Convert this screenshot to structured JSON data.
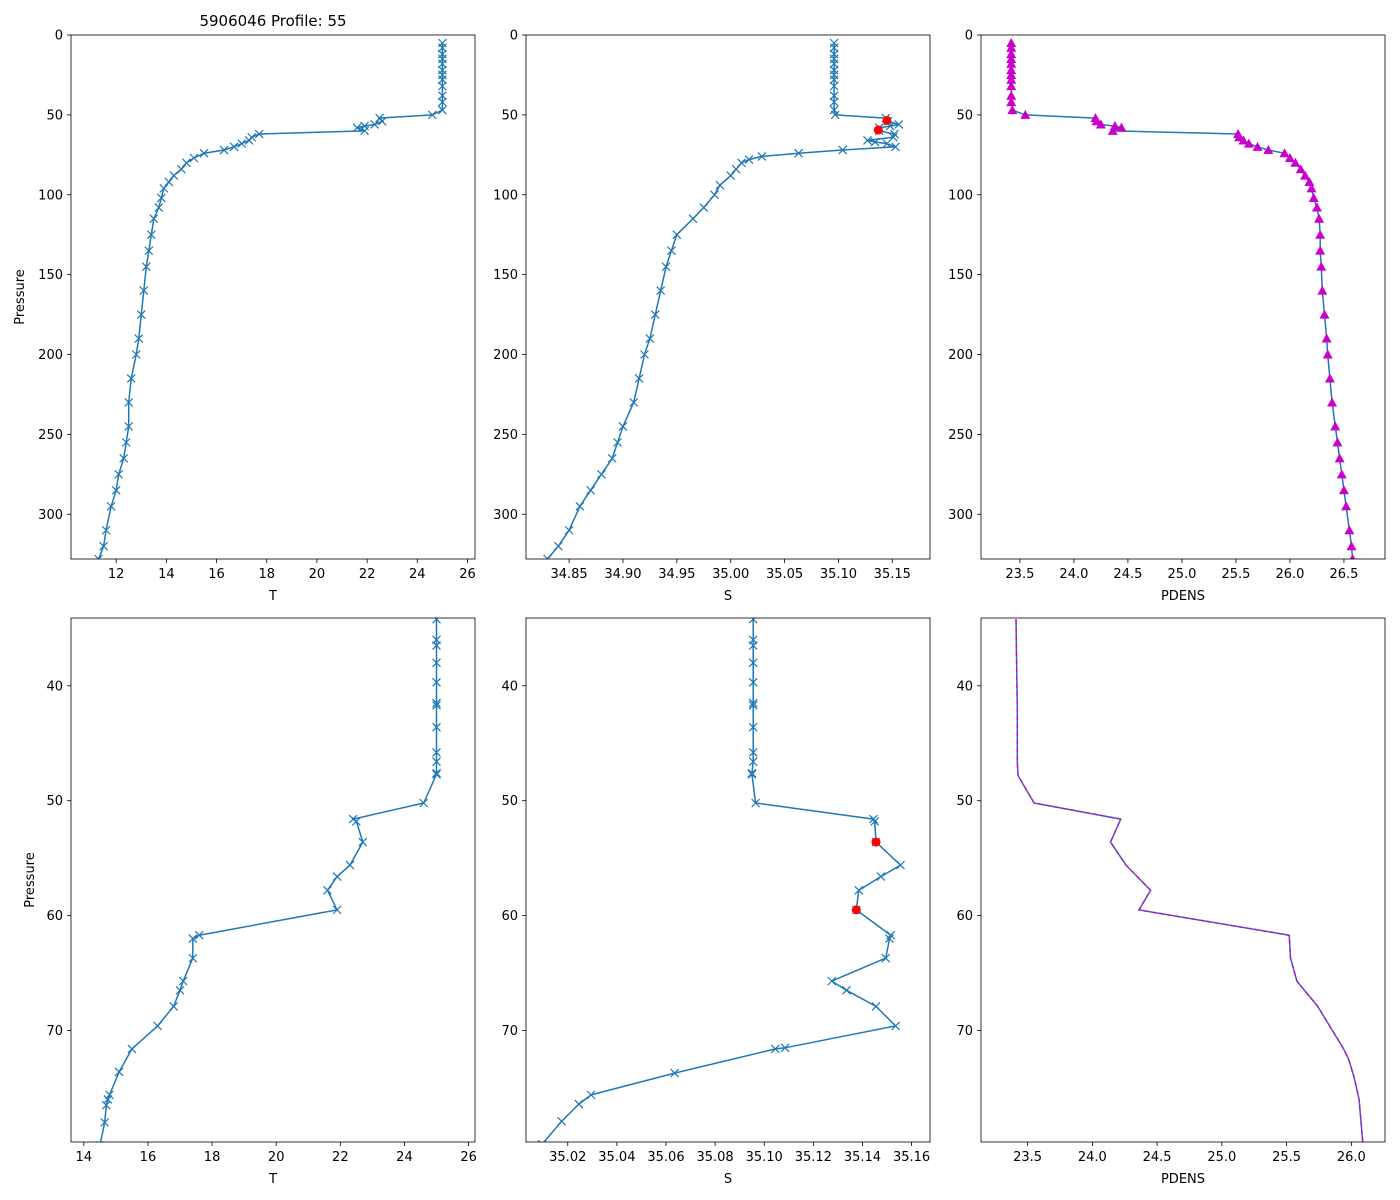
{
  "figure_title": "5906046 Profile: 55",
  "chart_data": [
    {
      "id": "top-t",
      "type": "line",
      "title": "5906046 Profile: 55",
      "xlabel": "T",
      "ylabel": "Pressure",
      "xlim": [
        10.2,
        26.3
      ],
      "ylim": [
        328,
        0
      ],
      "xticks": [
        12,
        14,
        16,
        18,
        20,
        22,
        24,
        26
      ],
      "yticks": [
        0,
        50,
        100,
        150,
        200,
        250,
        300
      ],
      "xtick_labels": [
        "12",
        "14",
        "16",
        "18",
        "20",
        "22",
        "24",
        "26"
      ],
      "ytick_labels": [
        "0",
        "50",
        "100",
        "150",
        "200",
        "250",
        "300"
      ],
      "series": [
        {
          "name": "T",
          "color": "#1f77b4",
          "marker": "x",
          "x": [
            25.0,
            25.0,
            25.0,
            25.0,
            25.0,
            25.0,
            25.0,
            25.0,
            25.0,
            25.0,
            25.0,
            25.0,
            24.6,
            22.5,
            22.6,
            22.3,
            21.9,
            21.6,
            21.9,
            17.7,
            17.4,
            17.3,
            17.0,
            16.7,
            16.3,
            15.5,
            15.1,
            14.8,
            14.6,
            14.3,
            14.1,
            13.9,
            13.8,
            13.7,
            13.5,
            13.4,
            13.3,
            13.2,
            13.1,
            13.0,
            12.9,
            12.8,
            12.6,
            12.5,
            12.5,
            12.4,
            12.3,
            12.1,
            12.0,
            11.8,
            11.6,
            11.5,
            11.3
          ],
          "y": [
            5,
            8,
            12,
            15,
            18,
            22,
            25,
            28,
            32,
            38,
            42,
            47,
            50,
            52,
            54,
            56,
            57,
            58,
            60,
            62,
            64,
            66,
            68,
            70,
            72,
            74,
            77,
            80,
            84,
            88,
            92,
            96,
            102,
            108,
            115,
            125,
            135,
            145,
            160,
            175,
            190,
            200,
            215,
            230,
            245,
            255,
            265,
            275,
            285,
            295,
            310,
            320,
            328
          ]
        }
      ]
    },
    {
      "id": "top-s",
      "type": "line",
      "title": "",
      "xlabel": "S",
      "ylabel": "",
      "xlim": [
        34.81,
        35.185
      ],
      "ylim": [
        328,
        0
      ],
      "xticks": [
        34.85,
        34.9,
        34.95,
        35.0,
        35.05,
        35.1,
        35.15
      ],
      "yticks": [
        0,
        50,
        100,
        150,
        200,
        250,
        300
      ],
      "xtick_labels": [
        "34.85",
        "34.90",
        "34.95",
        "35.00",
        "35.05",
        "35.10",
        "35.15"
      ],
      "ytick_labels": [
        "0",
        "50",
        "100",
        "150",
        "200",
        "250",
        "300"
      ],
      "series": [
        {
          "name": "S",
          "color": "#1f77b4",
          "marker": "x",
          "x": [
            35.096,
            35.096,
            35.096,
            35.096,
            35.096,
            35.096,
            35.096,
            35.096,
            35.096,
            35.096,
            35.096,
            35.096,
            35.097,
            35.144,
            35.146,
            35.156,
            35.148,
            35.138,
            35.138,
            35.152,
            35.151,
            35.127,
            35.134,
            35.145,
            35.153,
            35.104,
            35.063,
            35.029,
            35.017,
            35.01,
            35.005,
            35.0,
            34.99,
            34.985,
            34.975,
            34.965,
            34.95,
            34.945,
            34.94,
            34.935,
            34.93,
            34.925,
            34.92,
            34.915,
            34.91,
            34.9,
            34.895,
            34.89,
            34.88,
            34.87,
            34.86,
            34.85,
            34.84,
            34.83
          ],
          "y": [
            5,
            8,
            12,
            15,
            18,
            22,
            25,
            28,
            32,
            38,
            42,
            47,
            50,
            52,
            54,
            56,
            57,
            58,
            60,
            62,
            64,
            66,
            67,
            68,
            70,
            72,
            74,
            76,
            78,
            80,
            84,
            88,
            94,
            100,
            108,
            115,
            125,
            135,
            145,
            160,
            175,
            190,
            200,
            215,
            230,
            245,
            255,
            265,
            275,
            285,
            295,
            310,
            320,
            328
          ]
        },
        {
          "name": "flagged",
          "color": "#ff0000",
          "marker": "circle",
          "x": [
            35.145,
            35.137
          ],
          "y": [
            53.5,
            59.5
          ]
        }
      ]
    },
    {
      "id": "top-pdens",
      "type": "line",
      "title": "",
      "xlabel": "PDENS",
      "ylabel": "",
      "xlim": [
        23.14,
        26.88
      ],
      "ylim": [
        328,
        0
      ],
      "xticks": [
        23.5,
        24.0,
        24.5,
        25.0,
        25.5,
        26.0,
        26.5
      ],
      "yticks": [
        0,
        50,
        100,
        150,
        200,
        250,
        300
      ],
      "xtick_labels": [
        "23.5",
        "24.0",
        "24.5",
        "25.0",
        "25.5",
        "26.0",
        "26.5"
      ],
      "ytick_labels": [
        "0",
        "50",
        "100",
        "150",
        "200",
        "250",
        "300"
      ],
      "series": [
        {
          "name": "PDENS",
          "color": "#cc00cc",
          "line_color": "#1f77b4",
          "marker": "triangle",
          "x": [
            23.42,
            23.42,
            23.42,
            23.42,
            23.42,
            23.42,
            23.42,
            23.42,
            23.42,
            23.42,
            23.42,
            23.43,
            23.55,
            24.2,
            24.21,
            24.25,
            24.38,
            24.44,
            24.36,
            25.52,
            25.53,
            25.57,
            25.62,
            25.7,
            25.8,
            25.95,
            26.0,
            26.05,
            26.1,
            26.14,
            26.18,
            26.2,
            26.22,
            26.25,
            26.27,
            26.28,
            26.28,
            26.29,
            26.3,
            26.32,
            26.34,
            26.35,
            26.37,
            26.39,
            26.42,
            26.44,
            26.46,
            26.48,
            26.5,
            26.52,
            26.55,
            26.57,
            26.58
          ],
          "y": [
            5,
            8,
            12,
            15,
            18,
            22,
            25,
            28,
            32,
            38,
            42,
            47,
            50,
            52,
            54,
            56,
            57,
            58,
            60,
            62,
            64,
            66,
            68,
            70,
            72,
            74,
            77,
            80,
            84,
            88,
            92,
            96,
            102,
            108,
            115,
            125,
            135,
            145,
            160,
            175,
            190,
            200,
            215,
            230,
            245,
            255,
            265,
            275,
            285,
            295,
            310,
            320,
            328
          ]
        }
      ]
    },
    {
      "id": "bottom-t",
      "type": "line",
      "title": "",
      "xlabel": "T",
      "ylabel": "Pressure",
      "xlim": [
        13.6,
        26.2
      ],
      "ylim": [
        79.7,
        34.1
      ],
      "xticks": [
        14,
        16,
        18,
        20,
        22,
        24,
        26
      ],
      "yticks": [
        40,
        50,
        60,
        70
      ],
      "xtick_labels": [
        "14",
        "16",
        "18",
        "20",
        "22",
        "24",
        "26"
      ],
      "ytick_labels": [
        "40",
        "50",
        "60",
        "70"
      ],
      "series": [
        {
          "name": "T",
          "color": "#1f77b4",
          "marker": "x",
          "x": [
            25.0,
            25.0,
            25.0,
            25.0,
            25.0,
            25.0,
            25.0,
            25.0,
            25.0,
            25.0,
            25.0,
            25.0,
            24.6,
            22.4,
            22.5,
            22.7,
            22.3,
            21.9,
            21.6,
            21.9,
            17.6,
            17.4,
            17.4,
            17.1,
            17.0,
            16.8,
            16.3,
            15.5,
            15.1,
            14.8,
            14.75,
            14.7,
            14.65,
            14.5
          ],
          "y": [
            34.2,
            36.0,
            36.5,
            38.0,
            39.7,
            41.5,
            41.7,
            43.6,
            45.8,
            46.6,
            47.6,
            47.7,
            50.2,
            51.6,
            51.8,
            53.6,
            55.6,
            56.6,
            57.8,
            59.5,
            61.7,
            62.0,
            63.7,
            65.7,
            66.5,
            67.9,
            69.6,
            71.6,
            73.6,
            75.6,
            76.0,
            76.5,
            78.0,
            80.0
          ]
        }
      ]
    },
    {
      "id": "bottom-s",
      "type": "line",
      "title": "",
      "xlabel": "S",
      "ylabel": "",
      "xlim": [
        35.003,
        35.1675
      ],
      "ylim": [
        79.7,
        34.1
      ],
      "xticks": [
        35.02,
        35.04,
        35.06,
        35.08,
        35.1,
        35.12,
        35.14,
        35.16
      ],
      "yticks": [
        40,
        50,
        60,
        70
      ],
      "xtick_labels": [
        "35.02",
        "35.04",
        "35.06",
        "35.08",
        "35.10",
        "35.12",
        "35.14",
        "35.16"
      ],
      "ytick_labels": [
        "40",
        "50",
        "60",
        "70"
      ],
      "series": [
        {
          "name": "S",
          "color": "#1f77b4",
          "marker": "x",
          "x": [
            35.0955,
            35.0955,
            35.0955,
            35.0955,
            35.0955,
            35.0955,
            35.0955,
            35.0955,
            35.0955,
            35.0955,
            35.095,
            35.095,
            35.0965,
            35.1445,
            35.145,
            35.1455,
            35.1555,
            35.1475,
            35.1385,
            35.1375,
            35.1515,
            35.151,
            35.1495,
            35.1275,
            35.1335,
            35.1455,
            35.1535,
            35.1085,
            35.1045,
            35.0635,
            35.0295,
            35.0245,
            35.0175,
            35.0095
          ],
          "y": [
            34.2,
            36.0,
            36.5,
            38.0,
            39.7,
            41.5,
            41.7,
            43.6,
            45.8,
            46.6,
            47.6,
            47.7,
            50.2,
            51.6,
            51.8,
            53.6,
            55.6,
            56.6,
            57.8,
            59.5,
            61.7,
            62.0,
            63.7,
            65.7,
            66.5,
            67.9,
            69.6,
            71.5,
            71.6,
            73.7,
            75.6,
            76.4,
            77.9,
            79.9
          ]
        },
        {
          "name": "flagged",
          "color": "#ff0000",
          "marker": "circle",
          "x": [
            35.1455,
            35.1375
          ],
          "y": [
            53.6,
            59.5
          ]
        }
      ]
    },
    {
      "id": "bottom-pdens",
      "type": "line",
      "title": "",
      "xlabel": "PDENS",
      "ylabel": "",
      "xlim": [
        23.14,
        26.26
      ],
      "ylim": [
        79.7,
        34.1
      ],
      "xticks": [
        23.5,
        24.0,
        24.5,
        25.0,
        25.5,
        26.0
      ],
      "yticks": [
        40,
        50,
        60,
        70
      ],
      "xtick_labels": [
        "23.5",
        "24.0",
        "24.5",
        "25.0",
        "25.5",
        "26.0"
      ],
      "ytick_labels": [
        "40",
        "50",
        "60",
        "70"
      ],
      "series": [
        {
          "name": "PDENS",
          "color": "#cc00cc",
          "line_color": "#1f77b4",
          "marker": "none",
          "x": [
            23.41,
            23.415,
            23.42,
            23.42,
            23.42,
            23.425,
            23.43,
            23.55,
            24.22,
            24.14,
            24.26,
            24.45,
            24.36,
            25.52,
            25.53,
            25.58,
            25.74,
            25.94,
            25.98,
            26.02,
            26.06,
            26.09
          ],
          "y": [
            34.2,
            38.0,
            42.0,
            45.0,
            46.6,
            47.7,
            47.9,
            50.2,
            51.6,
            53.6,
            55.6,
            57.8,
            59.5,
            61.7,
            63.7,
            65.7,
            67.9,
            71.6,
            72.5,
            74.0,
            76.0,
            80.0
          ]
        }
      ]
    }
  ]
}
